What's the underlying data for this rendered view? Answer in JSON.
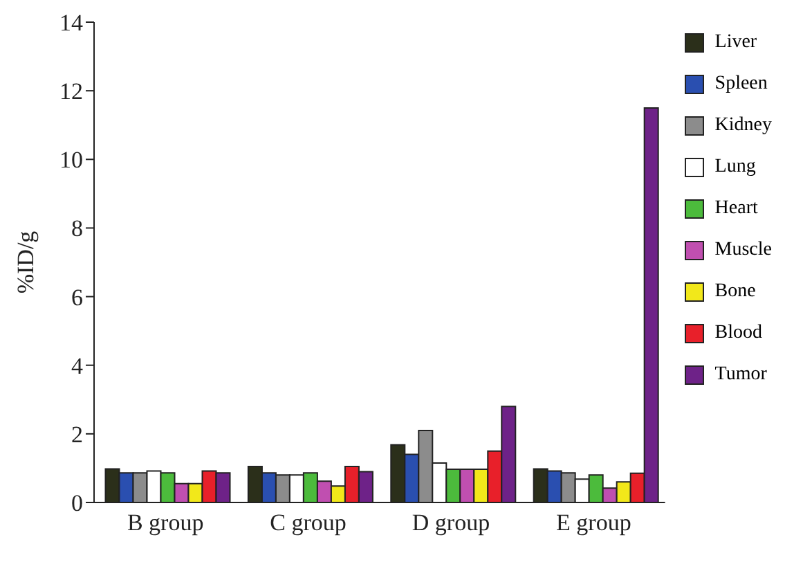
{
  "chart_data": {
    "type": "bar",
    "ylabel": "%ID/g",
    "categories": [
      "B group",
      "C group",
      "D group",
      "E group"
    ],
    "series": [
      {
        "name": "Liver",
        "color": "#2b2f1a",
        "values": [
          0.98,
          1.05,
          1.68,
          0.98
        ]
      },
      {
        "name": "Spleen",
        "color": "#2a4fb0",
        "values": [
          0.86,
          0.86,
          1.4,
          0.92
        ]
      },
      {
        "name": "Kidney",
        "color": "#8c8c8c",
        "values": [
          0.86,
          0.8,
          2.1,
          0.86
        ]
      },
      {
        "name": "Lung",
        "color": "#ffffff",
        "values": [
          0.92,
          0.8,
          1.15,
          0.68
        ]
      },
      {
        "name": "Heart",
        "color": "#4cbb3c",
        "values": [
          0.86,
          0.86,
          0.97,
          0.8
        ]
      },
      {
        "name": "Muscle",
        "color": "#c04fb0",
        "values": [
          0.55,
          0.62,
          0.97,
          0.42
        ]
      },
      {
        "name": "Bone",
        "color": "#f2e81a",
        "values": [
          0.55,
          0.48,
          0.97,
          0.6
        ]
      },
      {
        "name": "Blood",
        "color": "#e8202a",
        "values": [
          0.92,
          1.05,
          1.5,
          0.85
        ]
      },
      {
        "name": "Tumor",
        "color": "#6e2288",
        "values": [
          0.86,
          0.9,
          2.8,
          11.5
        ]
      }
    ],
    "ylim": [
      0,
      14
    ],
    "yticks": [
      0,
      2,
      4,
      6,
      8,
      10,
      12,
      14
    ],
    "grid": false,
    "legend": "right"
  }
}
